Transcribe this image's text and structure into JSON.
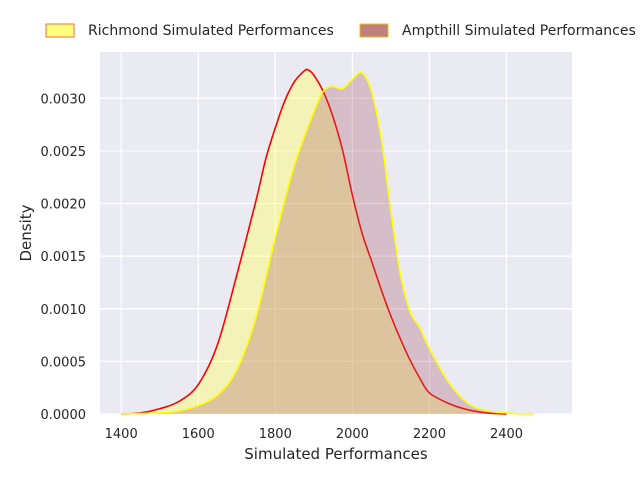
{
  "chart_data": {
    "type": "area",
    "xlabel": "Simulated Performances",
    "ylabel": "Density",
    "xlim": [
      1345,
      2570
    ],
    "ylim": [
      0,
      0.00344
    ],
    "x_ticks": [
      1400,
      1600,
      1800,
      2000,
      2200,
      2400
    ],
    "y_ticks": [
      0,
      0.0005,
      0.001,
      0.0015,
      0.002,
      0.0025,
      0.003
    ],
    "x_tick_labels": [
      "1400",
      "1600",
      "1800",
      "2000",
      "2200",
      "2400"
    ],
    "y_tick_labels": [
      "0.0000",
      "0.0005",
      "0.0010",
      "0.0015",
      "0.0020",
      "0.0025",
      "0.0030"
    ],
    "grid": true,
    "legend_placement": "top, outside plot",
    "series": [
      {
        "name": "Richmond Simulated Performances",
        "fill": "#ffff66",
        "fill_opacity": 0.42,
        "line": "#ff0000",
        "legend_fill": "#ffff80",
        "legend_edge": "#ff6a3d",
        "x": [
          1400,
          1450,
          1500,
          1550,
          1600,
          1650,
          1700,
          1750,
          1775,
          1800,
          1825,
          1850,
          1875,
          1885,
          1900,
          1925,
          1950,
          1975,
          2000,
          2025,
          2050,
          2075,
          2100,
          2125,
          2150,
          2175,
          2200,
          2250,
          2300,
          2350,
          2400
        ],
        "y": [
          0.0,
          1e-05,
          5e-05,
          0.00012,
          0.00028,
          0.00066,
          0.00132,
          0.00203,
          0.00242,
          0.00272,
          0.00298,
          0.00316,
          0.00326,
          0.00327,
          0.00322,
          0.00306,
          0.00282,
          0.0025,
          0.00208,
          0.00172,
          0.00145,
          0.00118,
          0.00093,
          0.00071,
          0.00051,
          0.00034,
          0.0002,
          0.0001,
          4e-05,
          1e-05,
          0.0
        ]
      },
      {
        "name": "Ampthill Simulated Performances",
        "fill": "#a85a6a",
        "fill_opacity": 0.3,
        "line": "#ffff00",
        "legend_fill": "#c08080",
        "legend_edge": "#e0c020",
        "x": [
          1400,
          1500,
          1550,
          1600,
          1650,
          1700,
          1750,
          1800,
          1850,
          1900,
          1925,
          1950,
          1975,
          2000,
          2025,
          2050,
          2075,
          2100,
          2125,
          2150,
          2175,
          2200,
          2250,
          2300,
          2350,
          2400,
          2450,
          2470
        ],
        "y": [
          0.0,
          1e-05,
          3e-05,
          8e-05,
          0.00018,
          0.00042,
          0.00092,
          0.00168,
          0.00237,
          0.00287,
          0.00307,
          0.00311,
          0.00309,
          0.00318,
          0.00324,
          0.00306,
          0.00262,
          0.00193,
          0.00132,
          0.00097,
          0.00082,
          0.00062,
          0.0003,
          0.0001,
          3e-05,
          1e-05,
          0.0,
          0.0
        ]
      }
    ]
  }
}
